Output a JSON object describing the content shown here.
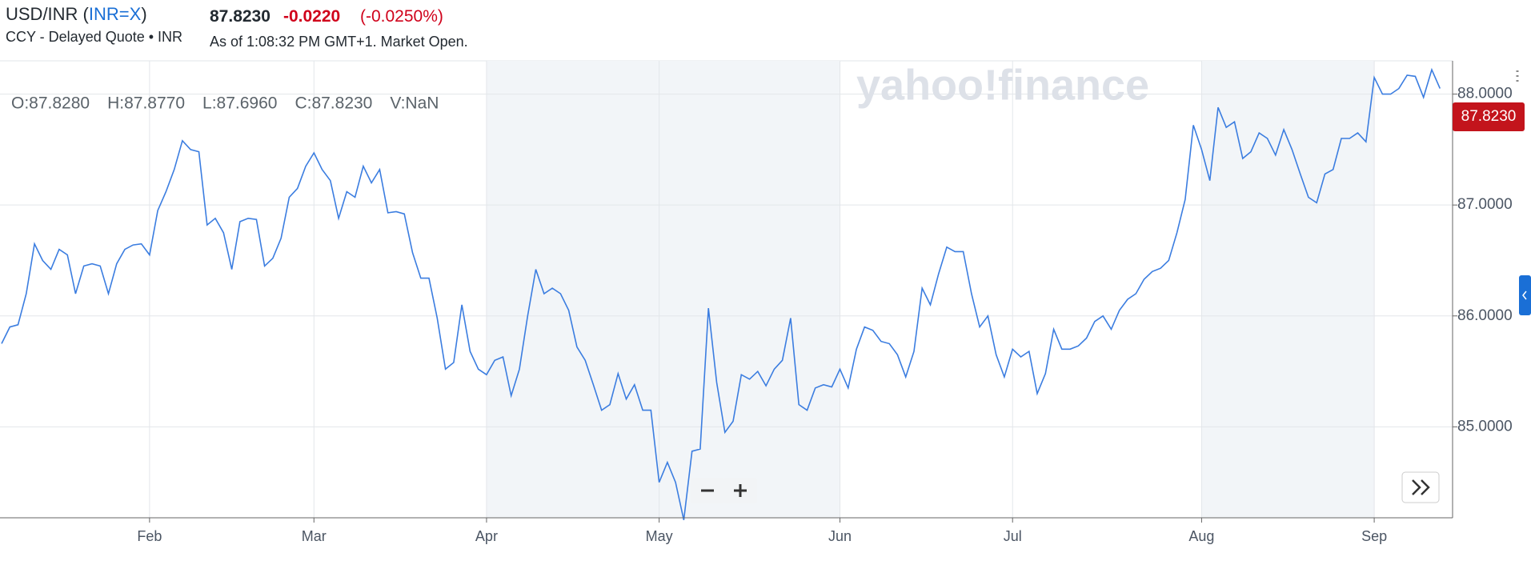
{
  "header": {
    "title_prefix": "USD/INR (",
    "ticker": "INR=X",
    "title_suffix": ")",
    "subtitle": "CCY - Delayed Quote • INR",
    "price": "87.8230",
    "change": "-0.0220",
    "change_percent": "(-0.0250%)",
    "timestamp": "As of 1:08:32 PM GMT+1. Market Open."
  },
  "ohlc": [
    "O:87.8280",
    "H:87.8770",
    "L:87.6960",
    "C:87.8230",
    "V:NaN"
  ],
  "watermark": "yahoo!finance",
  "chart_data": {
    "type": "line",
    "color": "#3b7de0",
    "grid": true,
    "categories": [
      null,
      null,
      null,
      null,
      null,
      null,
      null,
      null,
      null,
      null,
      null,
      null,
      null,
      null,
      null,
      null,
      null,
      null,
      "Feb",
      null,
      null,
      null,
      null,
      null,
      null,
      null,
      null,
      null,
      null,
      null,
      null,
      null,
      null,
      null,
      null,
      null,
      null,
      null,
      "Mar",
      null,
      null,
      null,
      null,
      null,
      null,
      null,
      null,
      null,
      null,
      null,
      null,
      null,
      null,
      null,
      null,
      null,
      null,
      null,
      null,
      "Apr",
      null,
      null,
      null,
      null,
      null,
      null,
      null,
      null,
      null,
      null,
      null,
      null,
      null,
      null,
      null,
      null,
      null,
      null,
      null,
      null,
      "May",
      null,
      null,
      null,
      null,
      null,
      null,
      null,
      null,
      null,
      null,
      null,
      null,
      null,
      null,
      null,
      null,
      null,
      null,
      null,
      null,
      null,
      "Jun",
      null,
      null,
      null,
      null,
      null,
      null,
      null,
      null,
      null,
      null,
      null,
      null,
      null,
      null,
      null,
      null,
      null,
      null,
      null,
      null,
      "Jul",
      null,
      null,
      null,
      null,
      null,
      null,
      null,
      null,
      null,
      null,
      null,
      null,
      null,
      null,
      null,
      null,
      null,
      null,
      null,
      null,
      null,
      null,
      "Aug",
      null,
      null,
      null,
      null,
      null,
      null,
      null,
      null,
      null,
      null,
      null,
      null,
      null,
      null,
      null,
      null,
      null,
      null,
      null,
      null,
      "Sep",
      null,
      null,
      null,
      null,
      null,
      null,
      null,
      null
    ],
    "values": [
      85.75,
      85.9,
      85.92,
      86.2,
      86.65,
      86.5,
      86.42,
      86.6,
      86.55,
      86.2,
      86.45,
      86.47,
      86.45,
      86.2,
      86.47,
      86.6,
      86.64,
      86.65,
      86.55,
      86.95,
      87.12,
      87.32,
      87.58,
      87.5,
      87.48,
      86.82,
      86.88,
      86.75,
      86.42,
      86.85,
      86.88,
      86.87,
      86.45,
      86.52,
      86.7,
      87.07,
      87.15,
      87.35,
      87.47,
      87.32,
      87.22,
      86.88,
      87.12,
      87.07,
      87.35,
      87.2,
      87.32,
      86.93,
      86.94,
      86.92,
      86.57,
      86.34,
      86.34,
      85.98,
      85.52,
      85.58,
      86.1,
      85.68,
      85.52,
      85.47,
      85.6,
      85.63,
      85.28,
      85.52,
      86.0,
      86.42,
      86.2,
      86.25,
      86.2,
      86.05,
      85.72,
      85.6,
      85.38,
      85.15,
      85.2,
      85.48,
      85.25,
      85.38,
      85.15,
      85.15,
      84.5,
      84.68,
      84.5,
      84.16,
      84.78,
      84.8,
      86.07,
      85.4,
      84.95,
      85.05,
      85.47,
      85.43,
      85.5,
      85.37,
      85.52,
      85.6,
      85.98,
      85.2,
      85.15,
      85.35,
      85.38,
      85.36,
      85.52,
      85.35,
      85.7,
      85.9,
      85.87,
      85.77,
      85.75,
      85.65,
      85.45,
      85.68,
      86.25,
      86.1,
      86.38,
      86.62,
      86.58,
      86.58,
      86.2,
      85.9,
      86.0,
      85.65,
      85.45,
      85.7,
      85.63,
      85.68,
      85.3,
      85.48,
      85.88,
      85.7,
      85.7,
      85.73,
      85.8,
      85.95,
      86.0,
      85.88,
      86.05,
      86.15,
      86.2,
      86.33,
      86.4,
      86.43,
      86.5,
      86.75,
      87.05,
      87.72,
      87.5,
      87.22,
      87.88,
      87.7,
      87.75,
      87.42,
      87.48,
      87.65,
      87.6,
      87.45,
      87.68,
      87.5,
      87.28,
      87.07,
      87.02,
      87.28,
      87.32,
      87.6,
      87.6,
      87.65,
      87.57,
      88.15,
      88.0,
      88.0,
      88.05,
      88.17,
      88.16,
      87.97,
      88.22,
      88.05
    ],
    "ylim": [
      84.18,
      88.3
    ],
    "yticks": [
      {
        "value": 85,
        "label": "85.0000"
      },
      {
        "value": 86,
        "label": "86.0000"
      },
      {
        "value": 87,
        "label": "87.0000"
      },
      {
        "value": 88,
        "label": "88.0000"
      }
    ]
  }
}
